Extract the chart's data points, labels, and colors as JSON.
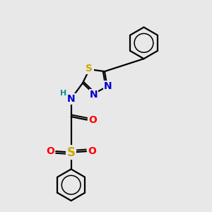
{
  "bg_color": "#e8e8e8",
  "bond_color": "#000000",
  "bond_width": 1.6,
  "atom_colors": {
    "N": "#0000cc",
    "O": "#ff0000",
    "S_thiadiazole": "#ccaa00",
    "S_sulfonyl": "#ccaa00",
    "H": "#009090",
    "C": "#000000"
  },
  "font_size_atom": 10,
  "font_size_H": 8
}
